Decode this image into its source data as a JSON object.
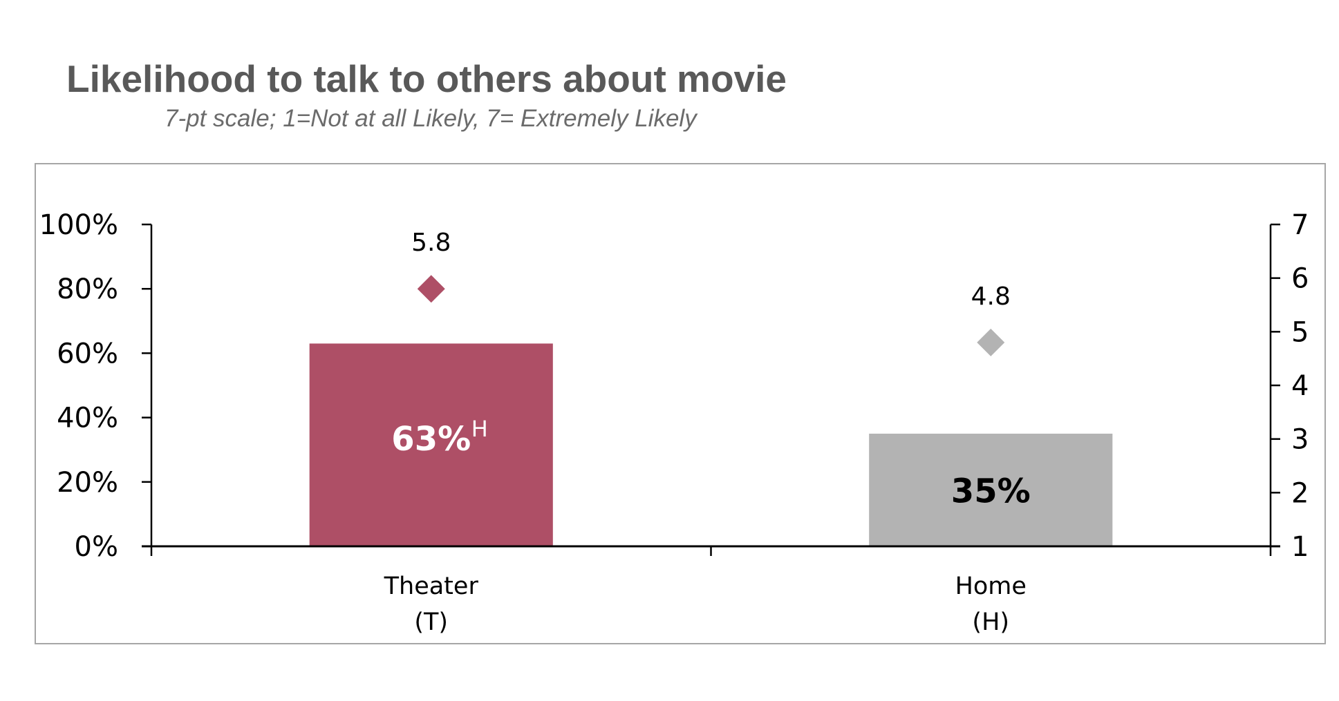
{
  "chart_data": {
    "type": "bar",
    "title": "Likelihood to talk to others about movie",
    "subtitle": "7-pt scale; 1=Not at all Likely, 7= Extremely Likely",
    "categories": [
      [
        "Theater",
        "(T)"
      ],
      [
        "Home",
        "(H)"
      ]
    ],
    "series": [
      {
        "type": "bar",
        "axis": "left",
        "values": [
          63,
          35
        ],
        "labels": [
          "63%",
          "35%"
        ],
        "annotations": [
          "H",
          ""
        ],
        "colors": [
          "#AE4F66",
          "#B3B3B3"
        ],
        "label_colors": [
          "#FFFFFF",
          "#000000"
        ]
      },
      {
        "type": "diamond",
        "axis": "right",
        "values": [
          5.8,
          4.8
        ],
        "labels": [
          "5.8",
          "4.8"
        ],
        "colors": [
          "#AE4F66",
          "#B3B3B3"
        ]
      }
    ],
    "left_axis": {
      "ylim": [
        0,
        100
      ],
      "ticks": [
        "0%",
        "20%",
        "40%",
        "60%",
        "80%",
        "100%"
      ]
    },
    "right_axis": {
      "ylim": [
        1,
        7
      ],
      "ticks": [
        "1",
        "2",
        "3",
        "4",
        "5",
        "6",
        "7"
      ]
    },
    "grid": false,
    "legend": "none"
  }
}
